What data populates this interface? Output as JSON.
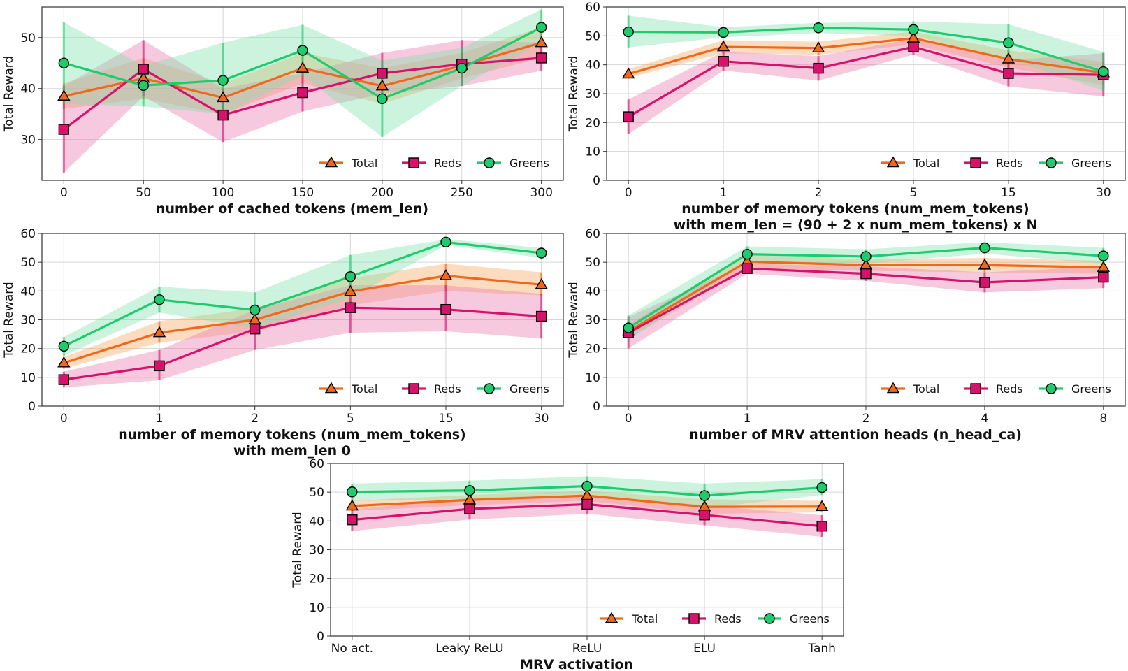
{
  "colors": {
    "total": "#f0691b",
    "reds": "#d6126c",
    "greens": "#1ecb6e",
    "band_total": "#f7a75e",
    "band_reds": "#ec78ad",
    "band_greens": "#7fe0aa"
  },
  "chart_data": [
    {
      "type": "line",
      "ylabel": "Total Reward",
      "xlabel": [
        "number of cached tokens (mem_len)"
      ],
      "categories": [
        "0",
        "50",
        "100",
        "150",
        "200",
        "250",
        "300"
      ],
      "ylim": [
        22,
        56
      ],
      "yticks": [
        30,
        40,
        50
      ],
      "grid": true,
      "legend": "bottom-right",
      "series": [
        {
          "name": "Total",
          "marker": "triangle",
          "values": [
            38.5,
            42,
            38.2,
            44,
            40.5,
            44.5,
            49
          ],
          "lower": [
            36,
            38,
            35,
            41,
            37,
            42,
            46
          ],
          "upper": [
            41,
            46,
            41,
            47,
            44,
            47,
            52
          ]
        },
        {
          "name": "Reds",
          "marker": "square",
          "values": [
            32,
            43.8,
            34.8,
            39.2,
            43,
            44.8,
            46
          ],
          "lower": [
            23.5,
            38.5,
            29.5,
            35.5,
            39,
            40.5,
            43.5
          ],
          "upper": [
            40.5,
            49.5,
            40,
            43,
            47,
            49.5,
            49
          ]
        },
        {
          "name": "Greens",
          "marker": "circle",
          "values": [
            45,
            40.6,
            41.6,
            47.5,
            38,
            44,
            52
          ],
          "lower": [
            37,
            36.5,
            35,
            42.5,
            30.5,
            40.5,
            49
          ],
          "upper": [
            53,
            44.5,
            49,
            52.5,
            45.5,
            48,
            55.5
          ]
        }
      ]
    },
    {
      "type": "line",
      "ylabel": "Total Reward",
      "xlabel": [
        "number of memory tokens (num_mem_tokens)",
        "with mem_len = (90 + 2 x num_mem_tokens) x N"
      ],
      "categories": [
        "0",
        "1",
        "2",
        "5",
        "15",
        "30"
      ],
      "ylim": [
        0,
        60
      ],
      "yticks": [
        0,
        10,
        20,
        30,
        40,
        50,
        60
      ],
      "grid": true,
      "legend": "bottom-right",
      "series": [
        {
          "name": "Total",
          "marker": "triangle",
          "values": [
            36.8,
            46.2,
            45.8,
            49.2,
            42,
            37.2
          ],
          "lower": [
            35.5,
            44,
            43.5,
            47,
            39,
            33
          ],
          "upper": [
            38.5,
            48.5,
            48,
            51.5,
            45,
            41
          ]
        },
        {
          "name": "Reds",
          "marker": "square",
          "values": [
            22,
            41.2,
            38.8,
            46.2,
            37,
            36.5
          ],
          "lower": [
            16,
            38,
            34.5,
            43.5,
            32.5,
            29
          ],
          "upper": [
            28,
            44.5,
            43,
            49,
            41.5,
            44
          ]
        },
        {
          "name": "Greens",
          "marker": "circle",
          "values": [
            51.4,
            51.2,
            52.8,
            52.2,
            47.6,
            37.6
          ],
          "lower": [
            46,
            49.5,
            51,
            50,
            42,
            31
          ],
          "upper": [
            57,
            53,
            54.5,
            55,
            54,
            44.5
          ]
        }
      ]
    },
    {
      "type": "line",
      "ylabel": "Total Reward",
      "xlabel": [
        "number of memory tokens (num_mem_tokens)",
        "with mem_len 0"
      ],
      "categories": [
        "0",
        "1",
        "2",
        "5",
        "15",
        "30"
      ],
      "ylim": [
        0,
        60
      ],
      "yticks": [
        0,
        10,
        20,
        30,
        40,
        50,
        60
      ],
      "grid": true,
      "legend": "bottom-right",
      "series": [
        {
          "name": "Total",
          "marker": "triangle",
          "values": [
            15,
            25.5,
            30,
            39.8,
            45.3,
            42.2
          ],
          "lower": [
            13,
            22,
            26,
            35,
            40,
            38.5
          ],
          "upper": [
            17,
            29.5,
            34,
            44.5,
            49.5,
            46.5
          ]
        },
        {
          "name": "Reds",
          "marker": "square",
          "values": [
            9.2,
            14,
            26.8,
            34.2,
            33.6,
            31.2
          ],
          "lower": [
            6.5,
            9,
            19.5,
            25.5,
            26,
            23.5
          ],
          "upper": [
            12,
            19.5,
            33.5,
            42,
            42,
            39
          ]
        },
        {
          "name": "Greens",
          "marker": "circle",
          "values": [
            20.8,
            37,
            33.4,
            45,
            57,
            53.2
          ],
          "lower": [
            17.5,
            32.5,
            27,
            37.5,
            56,
            51.5
          ],
          "upper": [
            24,
            41.5,
            39.5,
            52.5,
            58,
            55
          ]
        }
      ]
    },
    {
      "type": "line",
      "ylabel": "Total Reward",
      "xlabel": [
        "number of MRV attention heads (n_head_ca)"
      ],
      "categories": [
        "0",
        "1",
        "2",
        "4",
        "8"
      ],
      "ylim": [
        0,
        60
      ],
      "yticks": [
        0,
        10,
        20,
        30,
        40,
        50,
        60
      ],
      "grid": true,
      "legend": "bottom-right",
      "series": [
        {
          "name": "Total",
          "marker": "triangle",
          "values": [
            26,
            50.2,
            49,
            49,
            48.2
          ],
          "lower": [
            23.5,
            48,
            47,
            46.5,
            46
          ],
          "upper": [
            28.5,
            52.5,
            51,
            51.5,
            50.5
          ]
        },
        {
          "name": "Reds",
          "marker": "square",
          "values": [
            25.5,
            47.8,
            46,
            43,
            44.8
          ],
          "lower": [
            20,
            46,
            43.5,
            39.5,
            41
          ],
          "upper": [
            31,
            49.5,
            48.5,
            46.5,
            48.5
          ]
        },
        {
          "name": "Greens",
          "marker": "circle",
          "values": [
            27.2,
            52.8,
            52,
            55,
            52.2
          ],
          "lower": [
            23,
            50,
            49.5,
            53,
            49.5
          ],
          "upper": [
            31.5,
            55.5,
            54.5,
            57,
            55
          ]
        }
      ]
    },
    {
      "type": "line",
      "ylabel": "Total Reward",
      "xlabel": [
        "MRV activation"
      ],
      "categories": [
        "No act.",
        "Leaky ReLU",
        "ReLU",
        "ELU",
        "Tanh"
      ],
      "ylim": [
        0,
        60
      ],
      "yticks": [
        0,
        10,
        20,
        30,
        40,
        50,
        60
      ],
      "grid": true,
      "legend": "bottom-right",
      "series": [
        {
          "name": "Total",
          "marker": "triangle",
          "values": [
            45.2,
            47.3,
            48.8,
            44.9,
            45
          ],
          "lower": [
            43.5,
            45.5,
            47,
            42.5,
            43
          ],
          "upper": [
            47,
            49,
            50.5,
            47.5,
            47
          ]
        },
        {
          "name": "Reds",
          "marker": "square",
          "values": [
            40.4,
            44.2,
            45.8,
            42.1,
            38.2
          ],
          "lower": [
            36.5,
            40.5,
            42.5,
            38.5,
            34.5
          ],
          "upper": [
            44,
            48,
            49,
            45.5,
            42
          ]
        },
        {
          "name": "Greens",
          "marker": "circle",
          "values": [
            50.1,
            50.6,
            52.1,
            48.8,
            51.6
          ],
          "lower": [
            47,
            47.5,
            49,
            44.5,
            49
          ],
          "upper": [
            53,
            54,
            55.5,
            53,
            54.5
          ]
        }
      ]
    }
  ]
}
